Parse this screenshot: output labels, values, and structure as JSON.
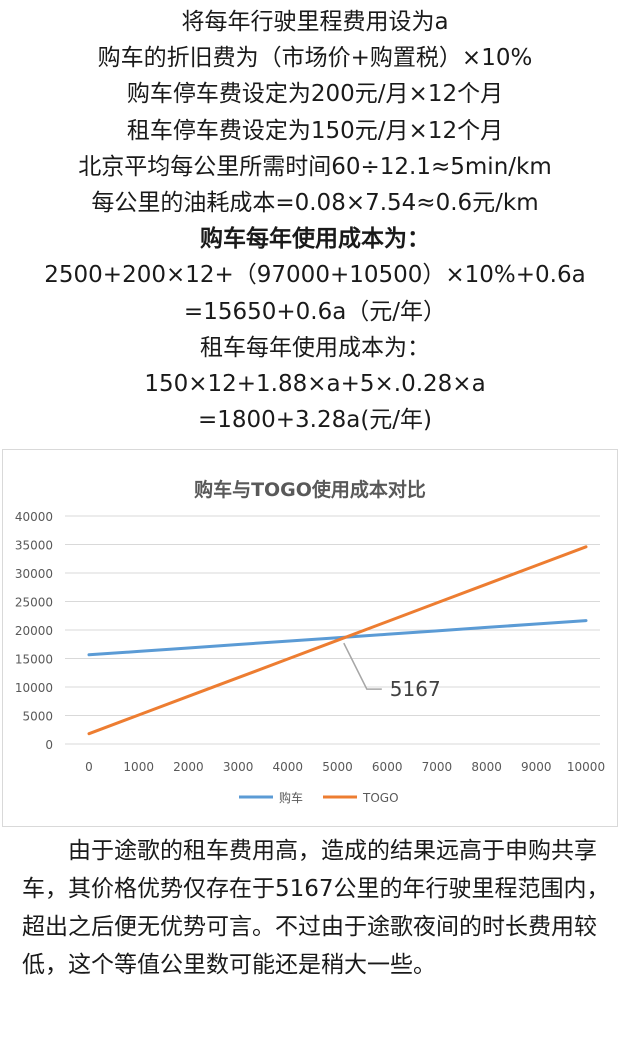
{
  "formulas": [
    "将每年行驶里程费用设为a",
    "购车的折旧费为（市场价+购置税）×10%",
    "购车停车费设定为200元/月×12个月",
    "租车停车费设定为150元/月×12个月",
    "北京平均每公里所需时间60÷12.1≈5min/km",
    "每公里的油耗成本=0.08×7.54≈0.6元/km",
    "购车每年使用成本为：",
    "2500+200×12+（97000+10500）×10%+0.6a",
    "=15650+0.6a（元/年）",
    "租车每年使用成本为：",
    "150×12+1.88×a+5×.0.28×a",
    "=1800+3.28a(元/年)"
  ],
  "chart_data": {
    "type": "line",
    "title": "购车与TOGO使用成本对比",
    "x": [
      0,
      1000,
      2000,
      3000,
      4000,
      5000,
      6000,
      7000,
      8000,
      9000,
      10000
    ],
    "x_ticks": [
      "0",
      "1000",
      "2000",
      "3000",
      "4000",
      "5000",
      "6000",
      "7000",
      "8000",
      "9000",
      "10000"
    ],
    "y_ticks": [
      "0",
      "5000",
      "10000",
      "15000",
      "20000",
      "25000",
      "30000",
      "35000",
      "40000"
    ],
    "ylim": [
      0,
      40000
    ],
    "grid": true,
    "legend_position": "bottom",
    "series": [
      {
        "name": "购车",
        "color": "#5b9bd5",
        "values": [
          15650,
          16250,
          16850,
          17450,
          18050,
          18650,
          19250,
          19850,
          20450,
          21050,
          21650
        ]
      },
      {
        "name": "TOGO",
        "color": "#ed7d31",
        "values": [
          1800,
          5080,
          8360,
          11640,
          14920,
          18200,
          21480,
          24760,
          28040,
          31320,
          34600
        ]
      }
    ],
    "annotation": {
      "label": "5167",
      "x": 5167,
      "y": 18750
    }
  },
  "paragraph": "由于途歌的租车费用高，造成的结果远高于申购共享车，其价格优势仅存在于5167公里的年行驶里程范围内，超出之后便无优势可言。不过由于途歌夜间的时长费用较低，这个等值公里数可能还是稍大一些。"
}
